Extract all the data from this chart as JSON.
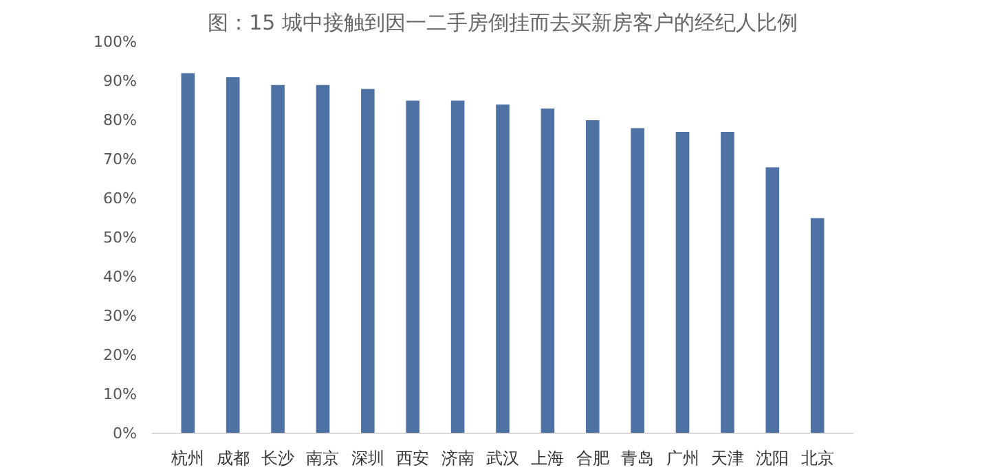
{
  "chart_data": {
    "type": "bar",
    "title": "图：15 城中接触到因一二手房倒挂而去买新房客户的经纪人比例",
    "categories": [
      "杭州",
      "成都",
      "长沙",
      "南京",
      "深圳",
      "西安",
      "济南",
      "武汉",
      "上海",
      "合肥",
      "青岛",
      "广州",
      "天津",
      "沈阳",
      "北京"
    ],
    "values": [
      92,
      91,
      89,
      89,
      88,
      85,
      85,
      84,
      83,
      80,
      78,
      77,
      77,
      68,
      55
    ],
    "color": "#4e72a4",
    "ylim": [
      0,
      100
    ],
    "yticks": [
      {
        "value": 0,
        "label": "0%"
      },
      {
        "value": 10,
        "label": "10%"
      },
      {
        "value": 20,
        "label": "20%"
      },
      {
        "value": 30,
        "label": "30%"
      },
      {
        "value": 40,
        "label": "40%"
      },
      {
        "value": 50,
        "label": "50%"
      },
      {
        "value": 60,
        "label": "60%"
      },
      {
        "value": 70,
        "label": "70%"
      },
      {
        "value": 80,
        "label": "80%"
      },
      {
        "value": 90,
        "label": "90%"
      },
      {
        "value": 100,
        "label": "100%"
      }
    ],
    "grid": false
  }
}
